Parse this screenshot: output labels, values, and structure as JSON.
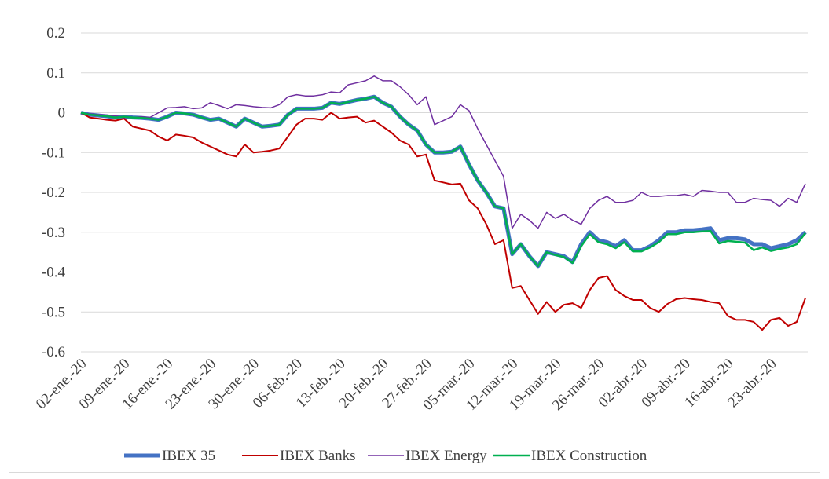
{
  "chart_data": {
    "type": "line",
    "categories": [
      "02-ene.-20",
      null,
      null,
      null,
      null,
      "09-ene.-20",
      null,
      null,
      null,
      null,
      "16-ene.-20",
      null,
      null,
      null,
      null,
      "23-ene.-20",
      null,
      null,
      null,
      null,
      "30-ene.-20",
      null,
      null,
      null,
      null,
      "06-feb.-20",
      null,
      null,
      null,
      null,
      "13-feb.-20",
      null,
      null,
      null,
      null,
      "20-feb.-20",
      null,
      null,
      null,
      null,
      "27-feb.-20",
      null,
      null,
      null,
      null,
      "05-mar.-20",
      null,
      null,
      null,
      null,
      "12-mar.-20",
      null,
      null,
      null,
      null,
      "19-mar.-20",
      null,
      null,
      null,
      null,
      "26-mar.-20",
      null,
      null,
      null,
      null,
      "02-abr.-20",
      null,
      null,
      null,
      null,
      "09-abr.-20",
      null,
      null,
      null,
      null,
      "16-abr.-20",
      null,
      null,
      null,
      null,
      "23-abr.-20",
      null,
      null,
      null,
      null
    ],
    "ylim": [
      -0.6,
      0.2
    ],
    "yticks": [
      0.2,
      0.1,
      0,
      -0.1,
      -0.2,
      -0.3,
      -0.4,
      -0.5,
      -0.6
    ],
    "grid": true,
    "legend": "bottom",
    "series": [
      {
        "name": "IBEX 35",
        "color": "#4472c4",
        "values": [
          0,
          -0.005,
          -0.007,
          -0.009,
          -0.012,
          -0.01,
          -0.012,
          -0.013,
          -0.015,
          -0.018,
          -0.01,
          0,
          -0.002,
          -0.005,
          -0.012,
          -0.018,
          -0.015,
          -0.025,
          -0.035,
          -0.015,
          -0.025,
          -0.035,
          -0.033,
          -0.03,
          -0.005,
          0.01,
          0.01,
          0.01,
          0.012,
          0.025,
          0.022,
          0.027,
          0.032,
          0.035,
          0.04,
          0.025,
          0.015,
          -0.01,
          -0.03,
          -0.045,
          -0.08,
          -0.1,
          -0.1,
          -0.098,
          -0.085,
          -0.13,
          -0.17,
          -0.2,
          -0.235,
          -0.24,
          -0.355,
          -0.33,
          -0.36,
          -0.385,
          -0.35,
          -0.355,
          -0.36,
          -0.375,
          -0.33,
          -0.3,
          -0.32,
          -0.325,
          -0.335,
          -0.32,
          -0.345,
          -0.345,
          -0.335,
          -0.32,
          -0.3,
          -0.3,
          -0.295,
          -0.295,
          -0.293,
          -0.29,
          -0.32,
          -0.315,
          -0.315,
          -0.318,
          -0.33,
          -0.33,
          -0.34,
          -0.335,
          -0.33,
          -0.32,
          -0.3
        ]
      },
      {
        "name": "IBEX Banks",
        "color": "#c00000",
        "values": [
          0,
          -0.012,
          -0.015,
          -0.018,
          -0.02,
          -0.015,
          -0.035,
          -0.04,
          -0.045,
          -0.06,
          -0.07,
          -0.055,
          -0.058,
          -0.062,
          -0.075,
          -0.085,
          -0.095,
          -0.105,
          -0.11,
          -0.08,
          -0.1,
          -0.098,
          -0.095,
          -0.09,
          -0.06,
          -0.03,
          -0.015,
          -0.015,
          -0.018,
          0,
          -0.015,
          -0.012,
          -0.01,
          -0.025,
          -0.02,
          -0.035,
          -0.05,
          -0.07,
          -0.08,
          -0.11,
          -0.105,
          -0.17,
          -0.175,
          -0.18,
          -0.178,
          -0.22,
          -0.24,
          -0.28,
          -0.33,
          -0.32,
          -0.44,
          -0.435,
          -0.47,
          -0.505,
          -0.475,
          -0.5,
          -0.482,
          -0.478,
          -0.49,
          -0.445,
          -0.415,
          -0.41,
          -0.445,
          -0.46,
          -0.47,
          -0.47,
          -0.49,
          -0.5,
          -0.48,
          -0.468,
          -0.465,
          -0.468,
          -0.47,
          -0.475,
          -0.478,
          -0.51,
          -0.52,
          -0.52,
          -0.525,
          -0.545,
          -0.52,
          -0.515,
          -0.535,
          -0.525,
          -0.465
        ]
      },
      {
        "name": "IBEX Energy",
        "color": "#7030a0",
        "values": [
          0,
          -0.003,
          -0.005,
          -0.006,
          -0.008,
          -0.012,
          -0.012,
          -0.01,
          -0.012,
          0,
          0.012,
          0.013,
          0.015,
          0.01,
          0.012,
          0.025,
          0.018,
          0.01,
          0.02,
          0.018,
          0.015,
          0.013,
          0.012,
          0.02,
          0.04,
          0.045,
          0.042,
          0.042,
          0.045,
          0.052,
          0.05,
          0.07,
          0.075,
          0.08,
          0.092,
          0.08,
          0.08,
          0.065,
          0.045,
          0.02,
          0.04,
          -0.03,
          -0.02,
          -0.01,
          0.02,
          0.005,
          -0.04,
          -0.08,
          -0.12,
          -0.16,
          -0.29,
          -0.255,
          -0.27,
          -0.29,
          -0.25,
          -0.265,
          -0.255,
          -0.27,
          -0.28,
          -0.24,
          -0.22,
          -0.21,
          -0.225,
          -0.225,
          -0.22,
          -0.2,
          -0.21,
          -0.21,
          -0.208,
          -0.208,
          -0.205,
          -0.21,
          -0.195,
          -0.197,
          -0.2,
          -0.2,
          -0.225,
          -0.225,
          -0.215,
          -0.218,
          -0.22,
          -0.235,
          -0.215,
          -0.225,
          -0.178
        ]
      },
      {
        "name": "IBEX Construction",
        "color": "#00b050",
        "values": [
          0,
          -0.005,
          -0.007,
          -0.009,
          -0.012,
          -0.01,
          -0.012,
          -0.013,
          -0.015,
          -0.018,
          -0.01,
          0,
          -0.002,
          -0.005,
          -0.012,
          -0.018,
          -0.015,
          -0.025,
          -0.035,
          -0.015,
          -0.025,
          -0.035,
          -0.033,
          -0.03,
          -0.005,
          0.01,
          0.01,
          0.01,
          0.012,
          0.025,
          0.022,
          0.027,
          0.032,
          0.035,
          0.04,
          0.025,
          0.015,
          -0.01,
          -0.03,
          -0.045,
          -0.08,
          -0.1,
          -0.1,
          -0.098,
          -0.085,
          -0.13,
          -0.17,
          -0.2,
          -0.235,
          -0.24,
          -0.355,
          -0.33,
          -0.36,
          -0.385,
          -0.35,
          -0.357,
          -0.362,
          -0.377,
          -0.335,
          -0.305,
          -0.325,
          -0.33,
          -0.34,
          -0.325,
          -0.348,
          -0.348,
          -0.338,
          -0.325,
          -0.305,
          -0.305,
          -0.3,
          -0.3,
          -0.298,
          -0.297,
          -0.328,
          -0.322,
          -0.324,
          -0.326,
          -0.345,
          -0.338,
          -0.347,
          -0.342,
          -0.338,
          -0.33,
          -0.302
        ]
      }
    ]
  }
}
